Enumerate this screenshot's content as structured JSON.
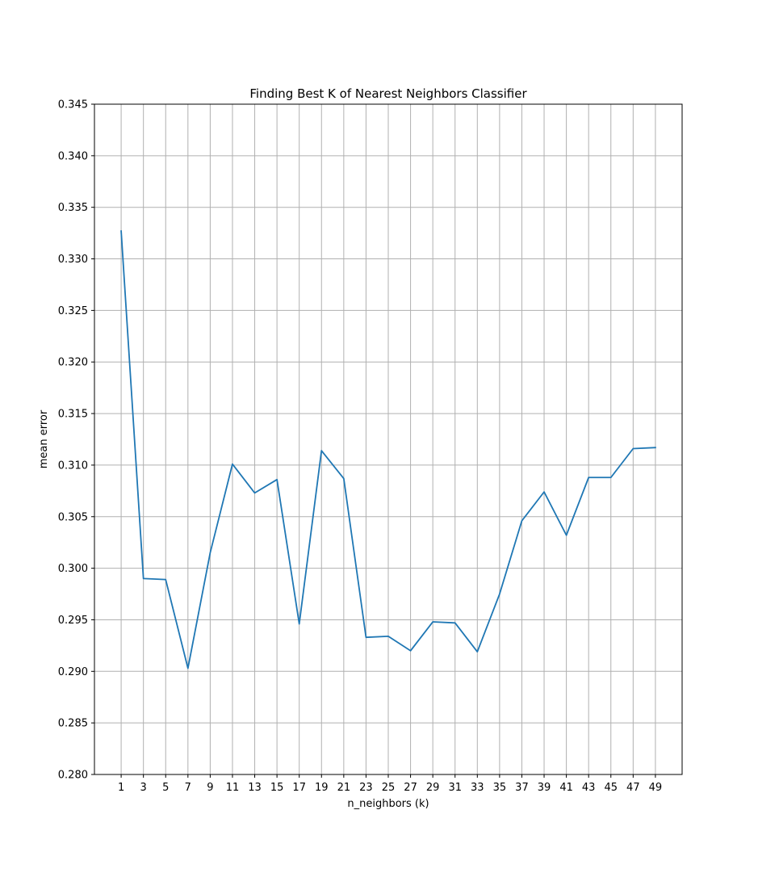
{
  "chart_data": {
    "type": "line",
    "title": "Finding Best K of Nearest Neighbors Classifier",
    "xlabel": "n_neighbors (k)",
    "ylabel": "mean error",
    "x": [
      1,
      3,
      5,
      7,
      9,
      11,
      13,
      15,
      17,
      19,
      21,
      23,
      25,
      27,
      29,
      31,
      33,
      35,
      37,
      39,
      41,
      43,
      45,
      47,
      49
    ],
    "xticks": [
      "1",
      "3",
      "5",
      "7",
      "9",
      "11",
      "13",
      "15",
      "17",
      "19",
      "21",
      "23",
      "25",
      "27",
      "29",
      "31",
      "33",
      "35",
      "37",
      "39",
      "41",
      "43",
      "45",
      "47",
      "49"
    ],
    "yticks": [
      "0.280",
      "0.285",
      "0.290",
      "0.295",
      "0.300",
      "0.305",
      "0.310",
      "0.315",
      "0.320",
      "0.325",
      "0.330",
      "0.335",
      "0.340",
      "0.345"
    ],
    "ylim": [
      0.28,
      0.345
    ],
    "grid": true,
    "colors": {
      "line": "#1f77b4",
      "grid": "#b0b0b0",
      "axes": "#000000"
    },
    "series": [
      {
        "values": [
          0.3327,
          0.299,
          0.2989,
          0.2903,
          0.3015,
          0.3101,
          0.3073,
          0.3086,
          0.2946,
          0.3114,
          0.3087,
          0.2933,
          0.2934,
          0.292,
          0.2948,
          0.2947,
          0.2919,
          0.2975,
          0.3046,
          0.3074,
          0.3032,
          0.3088,
          0.3088,
          0.3116,
          0.3117
        ]
      }
    ]
  }
}
